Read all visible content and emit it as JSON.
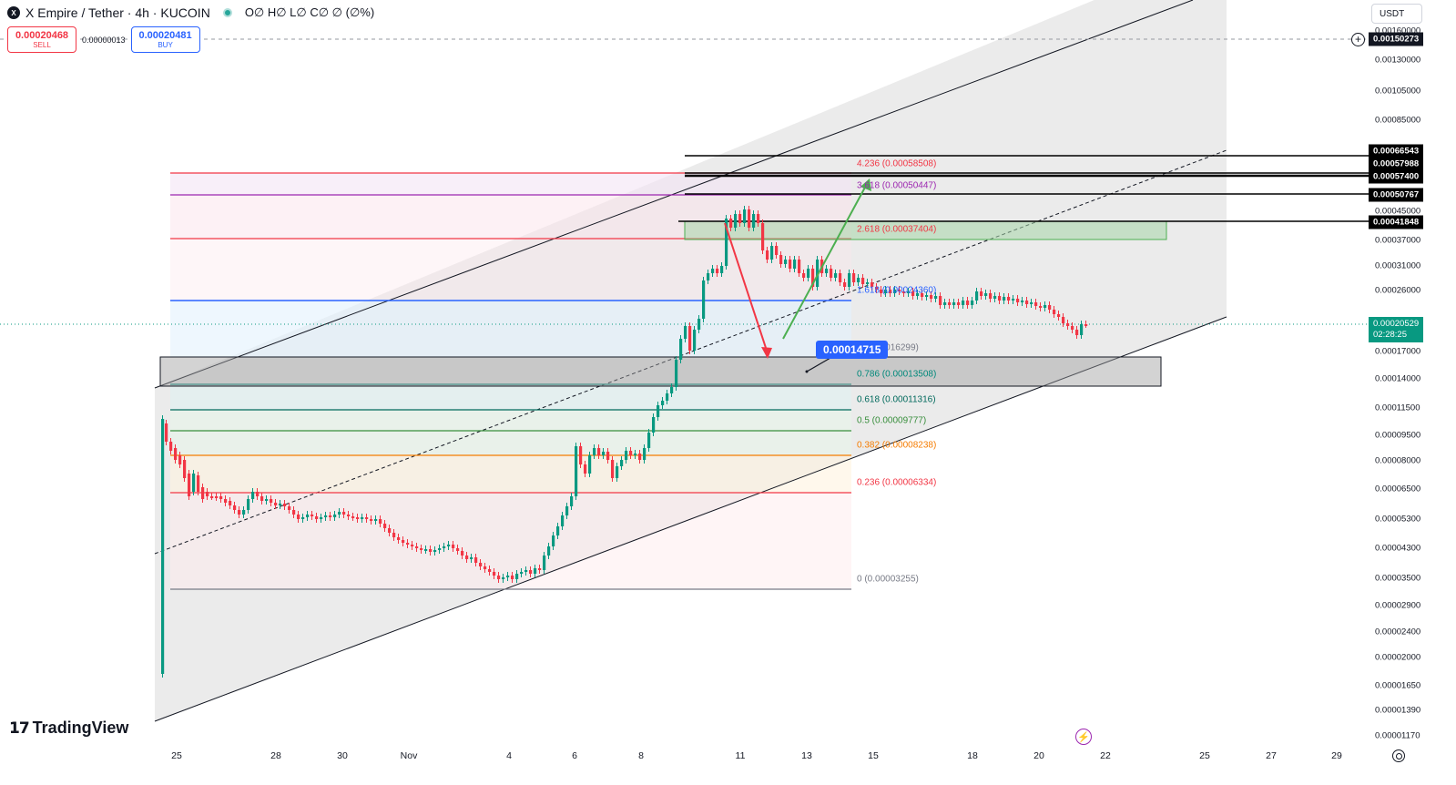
{
  "header": {
    "logo_icon": "x-empire-logo-icon",
    "title": "X Empire / Tether · 4h · KUCOIN",
    "ohlc": "O∅ H∅ L∅ C∅ ∅ (∅%)"
  },
  "trade": {
    "sell_price": "0.00020468",
    "sell_label": "SELL",
    "spread": "0.00000013",
    "buy_price": "0.00020481",
    "buy_label": "BUY"
  },
  "currency": "USDT",
  "price_axis": {
    "labels": [
      "0.00160000",
      "0.00130000",
      "0.00105000",
      "0.00085000",
      "0.00045000",
      "0.00037000",
      "0.00031000",
      "0.00026000",
      "0.00017000",
      "0.00014000",
      "0.00011500",
      "0.00009500",
      "0.00008000",
      "0.00006500",
      "0.00005300",
      "0.00004300",
      "0.00003500",
      "0.00002900",
      "0.00002400",
      "0.00002000",
      "0.00001650",
      "0.00001390",
      "0.00001170"
    ],
    "tags": [
      "0.00150273",
      "0.00066543",
      "0.00057988",
      "0.00057400",
      "0.00050767",
      "0.00041848"
    ],
    "current_price": "0.00020529",
    "countdown": "02:28:25"
  },
  "time_axis": {
    "labels": [
      "25",
      "28",
      "30",
      "Nov",
      "4",
      "6",
      "8",
      "11",
      "13",
      "15",
      "18",
      "20",
      "22",
      "25",
      "27",
      "29"
    ]
  },
  "fib_levels": [
    {
      "text": "4.236 (0.00058508)",
      "color": "#f23645"
    },
    {
      "text": "3.618 (0.00050447)",
      "color": "#9c27b0"
    },
    {
      "text": "2.618 (0.00037404)",
      "color": "#f23645"
    },
    {
      "text": "1.618 (0.00024360)",
      "color": "#2962ff"
    },
    {
      "text": "1 (0.00016299)",
      "color": "#787b86"
    },
    {
      "text": "0.786 (0.00013508)",
      "color": "#00897b"
    },
    {
      "text": "0.618 (0.00011316)",
      "color": "#00695c"
    },
    {
      "text": "0.5 (0.00009777)",
      "color": "#388e3c"
    },
    {
      "text": "0.382 (0.00008238)",
      "color": "#f57c00"
    },
    {
      "text": "0.236 (0.00006334)",
      "color": "#f23645"
    },
    {
      "text": "0 (0.00003255)",
      "color": "#787b86"
    }
  ],
  "callout": "0.00014715",
  "brand": "TradingView",
  "colors": {
    "up": "#089981",
    "down": "#f23645",
    "channel_fill": "#e6e6e6",
    "arrow_down": "#f23645",
    "arrow_up": "#4caf50"
  },
  "icons": [
    "plus-icon",
    "alert-icon",
    "settings-icon",
    "tradingview-logo-icon"
  ]
}
